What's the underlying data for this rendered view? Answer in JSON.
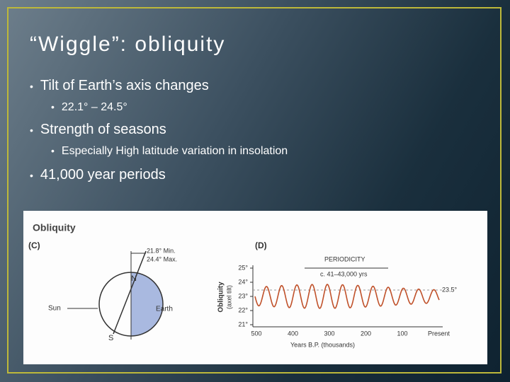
{
  "slide": {
    "title": "“Wiggle”: obliquity",
    "bullets": [
      {
        "text": "Tilt of Earth’s axis changes",
        "sub": [
          "22.1° – 24.5°"
        ]
      },
      {
        "text": "Strength of seasons",
        "sub": [
          "Especially High latitude variation in insolation"
        ]
      },
      {
        "text": "41,000 year periods"
      }
    ]
  },
  "figure": {
    "heading": "Obliquity",
    "panel_c": {
      "label": "(C)",
      "min": "21.8° Min.",
      "max": "24.4° Max.",
      "north": "N",
      "south": "S",
      "sun": "Sun",
      "earth": "Earth"
    },
    "panel_d": {
      "label": "(D)",
      "periodicity": "PERIODICITY",
      "period": "c. 41–43,000 yrs",
      "y_label": [
        "Obliquity",
        "(axel tilt)"
      ],
      "y_ticks": [
        "25°",
        "24°",
        "23°",
        "22°",
        "21°"
      ],
      "mean": "23.5°",
      "x_ticks": [
        "500",
        "400",
        "300",
        "200",
        "100",
        "Present"
      ],
      "x_label": "Years B.P. (thousands)"
    }
  }
}
